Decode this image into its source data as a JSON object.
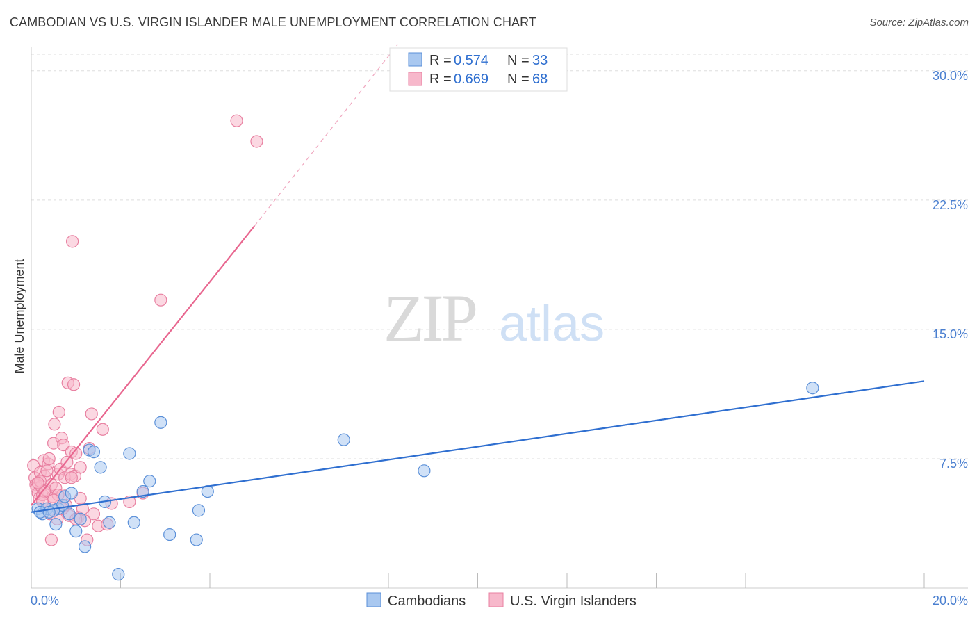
{
  "header": {
    "title": "CAMBODIAN VS U.S. VIRGIN ISLANDER MALE UNEMPLOYMENT CORRELATION CHART",
    "source": "Source: ZipAtlas.com"
  },
  "watermark": {
    "zip": "ZIP",
    "atlas": "atlas"
  },
  "colors": {
    "blue_fill": "#a9c8f0",
    "blue_stroke": "#5a8fd8",
    "blue_line": "#2f6fd0",
    "pink_fill": "#f7b8cb",
    "pink_stroke": "#e87fa0",
    "pink_line": "#e8668f",
    "tick_text": "#4a7fd0",
    "grid": "#dddddd"
  },
  "legend_box": {
    "rows": [
      {
        "r_label": "R = ",
        "r_value": "0.574",
        "n_label": "N = ",
        "n_value": "33"
      },
      {
        "r_label": "R = ",
        "r_value": "0.669",
        "n_label": "N = ",
        "n_value": "68"
      }
    ]
  },
  "chart_data": {
    "type": "scatter",
    "title": "CAMBODIAN VS U.S. VIRGIN ISLANDER MALE UNEMPLOYMENT CORRELATION CHART",
    "xlabel": "",
    "ylabel": "Male Unemployment",
    "xlim": [
      0,
      20
    ],
    "ylim": [
      0,
      31.2
    ],
    "x_tick_labels": [
      "0.0%",
      "20.0%"
    ],
    "y_ticks": [
      7.5,
      15.0,
      22.5,
      30.0
    ],
    "y_tick_labels": [
      "7.5%",
      "15.0%",
      "22.5%",
      "30.0%"
    ],
    "grid": true,
    "legend_position": "bottom",
    "series": [
      {
        "name": "Cambodians",
        "r": 0.574,
        "n": 33,
        "trend": {
          "x": [
            0,
            20
          ],
          "y": [
            4.4,
            12.0
          ],
          "dashed_to": null
        },
        "points": [
          [
            0.15,
            4.6
          ],
          [
            0.25,
            4.3
          ],
          [
            0.35,
            4.6
          ],
          [
            0.55,
            3.7
          ],
          [
            0.6,
            4.6
          ],
          [
            0.7,
            4.8
          ],
          [
            0.75,
            5.3
          ],
          [
            0.85,
            4.3
          ],
          [
            1.0,
            3.3
          ],
          [
            1.2,
            2.4
          ],
          [
            1.3,
            8.0
          ],
          [
            1.4,
            7.9
          ],
          [
            1.55,
            7.0
          ],
          [
            1.65,
            5.0
          ],
          [
            1.75,
            3.8
          ],
          [
            1.95,
            0.8
          ],
          [
            2.2,
            7.8
          ],
          [
            2.3,
            3.8
          ],
          [
            2.5,
            5.6
          ],
          [
            2.65,
            6.2
          ],
          [
            2.9,
            9.6
          ],
          [
            3.1,
            3.1
          ],
          [
            3.7,
            2.8
          ],
          [
            3.75,
            4.5
          ],
          [
            3.95,
            5.6
          ],
          [
            7.0,
            8.6
          ],
          [
            8.8,
            6.8
          ],
          [
            17.5,
            11.6
          ],
          [
            0.2,
            4.4
          ],
          [
            0.5,
            4.5
          ],
          [
            1.1,
            4.0
          ],
          [
            0.9,
            5.5
          ],
          [
            0.4,
            4.4
          ]
        ]
      },
      {
        "name": "U.S. Virgin Islanders",
        "r": 0.669,
        "n": 68,
        "trend": {
          "x": [
            0,
            5.0
          ],
          "y": [
            4.8,
            21.0
          ],
          "dashed_to": [
            8.2,
            31.5
          ]
        },
        "points": [
          [
            0.05,
            7.1
          ],
          [
            0.08,
            6.4
          ],
          [
            0.1,
            6.0
          ],
          [
            0.12,
            5.8
          ],
          [
            0.15,
            5.5
          ],
          [
            0.18,
            5.2
          ],
          [
            0.2,
            6.7
          ],
          [
            0.22,
            5.9
          ],
          [
            0.25,
            5.4
          ],
          [
            0.28,
            7.4
          ],
          [
            0.3,
            6.5
          ],
          [
            0.32,
            5.7
          ],
          [
            0.35,
            4.6
          ],
          [
            0.38,
            7.2
          ],
          [
            0.4,
            7.5
          ],
          [
            0.42,
            4.3
          ],
          [
            0.45,
            6.0
          ],
          [
            0.48,
            5.3
          ],
          [
            0.5,
            8.4
          ],
          [
            0.52,
            9.5
          ],
          [
            0.55,
            5.8
          ],
          [
            0.58,
            4.0
          ],
          [
            0.6,
            6.6
          ],
          [
            0.62,
            10.2
          ],
          [
            0.65,
            6.9
          ],
          [
            0.68,
            8.7
          ],
          [
            0.7,
            5.4
          ],
          [
            0.72,
            8.3
          ],
          [
            0.75,
            6.4
          ],
          [
            0.78,
            4.8
          ],
          [
            0.8,
            7.3
          ],
          [
            0.82,
            11.9
          ],
          [
            0.85,
            4.2
          ],
          [
            0.88,
            6.6
          ],
          [
            0.9,
            7.9
          ],
          [
            0.92,
            20.1
          ],
          [
            0.95,
            11.8
          ],
          [
            0.98,
            6.5
          ],
          [
            1.0,
            7.8
          ],
          [
            1.05,
            4.1
          ],
          [
            1.1,
            7.0
          ],
          [
            1.15,
            4.6
          ],
          [
            1.2,
            3.9
          ],
          [
            1.25,
            2.8
          ],
          [
            1.3,
            8.1
          ],
          [
            1.35,
            10.1
          ],
          [
            1.4,
            4.3
          ],
          [
            1.5,
            3.6
          ],
          [
            1.6,
            9.2
          ],
          [
            1.7,
            3.7
          ],
          [
            1.8,
            4.9
          ],
          [
            2.2,
            5.0
          ],
          [
            2.5,
            5.5
          ],
          [
            2.9,
            16.7
          ],
          [
            4.6,
            27.1
          ],
          [
            5.05,
            25.9
          ],
          [
            0.45,
            2.8
          ],
          [
            1.0,
            4.0
          ],
          [
            0.3,
            5.6
          ],
          [
            0.6,
            5.4
          ],
          [
            0.2,
            6.2
          ],
          [
            0.15,
            6.1
          ],
          [
            0.35,
            6.8
          ],
          [
            0.5,
            5.1
          ],
          [
            0.7,
            4.6
          ],
          [
            0.9,
            6.4
          ],
          [
            1.1,
            5.2
          ],
          [
            0.25,
            5.0
          ]
        ]
      }
    ]
  }
}
